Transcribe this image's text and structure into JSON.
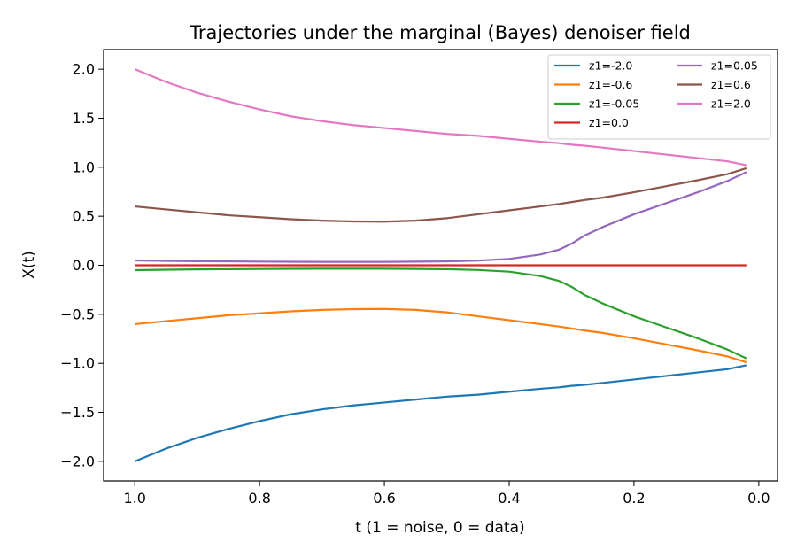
{
  "chart_data": {
    "type": "line",
    "title": "Trajectories under the marginal (Bayes) denoiser field",
    "xlabel": "t (1 = noise, 0 = data)",
    "ylabel": "X(t)",
    "xlim": [
      1.05,
      -0.03
    ],
    "ylim": [
      -2.2,
      2.2
    ],
    "x_inverted": true,
    "grid": false,
    "legend_position": "upper-right",
    "legend_columns": 2,
    "xticks": [
      1.0,
      0.8,
      0.6,
      0.4,
      0.2,
      0.0
    ],
    "xtick_labels": [
      "1.0",
      "0.8",
      "0.6",
      "0.4",
      "0.2",
      "0.0"
    ],
    "yticks": [
      -2.0,
      -1.5,
      -1.0,
      -0.5,
      0.0,
      0.5,
      1.0,
      1.5,
      2.0
    ],
    "ytick_labels": [
      "−2.0",
      "−1.5",
      "−1.0",
      "−0.5",
      "0.0",
      "0.5",
      "1.0",
      "1.5",
      "2.0"
    ],
    "x": [
      1.0,
      0.95,
      0.9,
      0.85,
      0.8,
      0.75,
      0.7,
      0.65,
      0.6,
      0.55,
      0.5,
      0.45,
      0.4,
      0.35,
      0.32,
      0.3,
      0.28,
      0.25,
      0.2,
      0.15,
      0.1,
      0.05,
      0.02
    ],
    "series": [
      {
        "name": "z1=-2.0",
        "color": "#1f77b4",
        "values": [
          -2.0,
          -1.87,
          -1.76,
          -1.67,
          -1.59,
          -1.52,
          -1.47,
          -1.43,
          -1.4,
          -1.37,
          -1.34,
          -1.32,
          -1.29,
          -1.26,
          -1.245,
          -1.23,
          -1.22,
          -1.2,
          -1.165,
          -1.13,
          -1.095,
          -1.06,
          -1.02
        ]
      },
      {
        "name": "z1=-0.6",
        "color": "#ff7f0e",
        "values": [
          -0.6,
          -0.57,
          -0.54,
          -0.51,
          -0.49,
          -0.47,
          -0.455,
          -0.447,
          -0.445,
          -0.455,
          -0.48,
          -0.52,
          -0.56,
          -0.6,
          -0.625,
          -0.645,
          -0.665,
          -0.69,
          -0.745,
          -0.805,
          -0.865,
          -0.93,
          -0.99
        ]
      },
      {
        "name": "z1=-0.05",
        "color": "#2ca02c",
        "values": [
          -0.05,
          -0.045,
          -0.042,
          -0.04,
          -0.038,
          -0.036,
          -0.035,
          -0.035,
          -0.035,
          -0.037,
          -0.04,
          -0.048,
          -0.065,
          -0.11,
          -0.16,
          -0.22,
          -0.3,
          -0.39,
          -0.52,
          -0.63,
          -0.74,
          -0.86,
          -0.95
        ]
      },
      {
        "name": "z1=0.0",
        "color": "#d62728",
        "values": [
          0,
          0,
          0,
          0,
          0,
          0,
          0,
          0,
          0,
          0,
          0,
          0,
          0,
          0,
          0,
          0,
          0,
          0,
          0,
          0,
          0,
          0,
          0
        ]
      },
      {
        "name": "z1=0.05",
        "color": "#9467bd",
        "values": [
          0.05,
          0.045,
          0.042,
          0.04,
          0.038,
          0.036,
          0.035,
          0.035,
          0.035,
          0.037,
          0.04,
          0.048,
          0.065,
          0.11,
          0.16,
          0.22,
          0.3,
          0.39,
          0.52,
          0.63,
          0.74,
          0.86,
          0.95
        ]
      },
      {
        "name": "z1=0.6",
        "color": "#8c564b",
        "values": [
          0.6,
          0.57,
          0.54,
          0.51,
          0.49,
          0.47,
          0.455,
          0.447,
          0.445,
          0.455,
          0.48,
          0.52,
          0.56,
          0.6,
          0.625,
          0.645,
          0.665,
          0.69,
          0.745,
          0.805,
          0.865,
          0.93,
          0.99
        ]
      },
      {
        "name": "z1=2.0",
        "color": "#e377c2",
        "values": [
          2.0,
          1.87,
          1.76,
          1.67,
          1.59,
          1.52,
          1.47,
          1.43,
          1.4,
          1.37,
          1.34,
          1.32,
          1.29,
          1.26,
          1.245,
          1.23,
          1.22,
          1.2,
          1.165,
          1.13,
          1.095,
          1.06,
          1.02
        ]
      }
    ]
  }
}
